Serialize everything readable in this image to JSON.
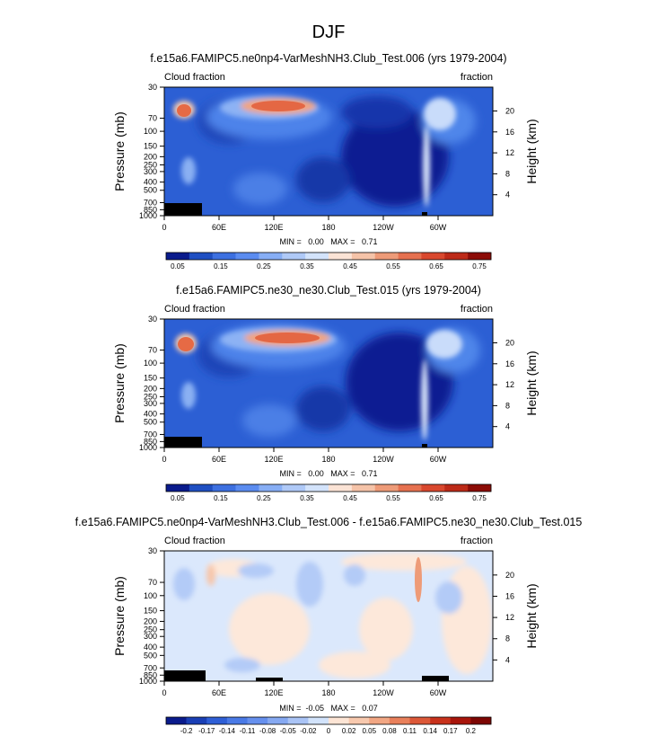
{
  "page_title": "DJF",
  "chart_data": [
    {
      "type": "heatmap",
      "title": "f.e15a6.FAMIPC5.ne0np4-VarMeshNH3.Club_Test.006 (yrs 1979-2004)",
      "left_label": "Cloud fraction",
      "right_label": "fraction",
      "ylabel": "Pressure (mb)",
      "ylabel_right": "Height (km)",
      "x_ticks": [
        "0",
        "60E",
        "120E",
        "180",
        "120W",
        "60W"
      ],
      "y_ticks": [
        "30",
        "70",
        "100",
        "150",
        "200",
        "250",
        "300",
        "400",
        "500",
        "700",
        "850",
        "1000"
      ],
      "height_ticks": [
        "20",
        "16",
        "12",
        "8",
        "4"
      ],
      "stats": "MIN =   0.00   MAX =   0.71",
      "colorbar_labels": [
        "0.05",
        "0.15",
        "0.25",
        "0.35",
        "0.45",
        "0.55",
        "0.65",
        "0.75"
      ],
      "colorbar_colors": [
        "#0a1b8c",
        "#1f4fc2",
        "#3d70e0",
        "#5b8cf0",
        "#87aef5",
        "#afc9f7",
        "#d3e3fb",
        "#fbe3d5",
        "#f5c3a8",
        "#ee9b78",
        "#e67150",
        "#d9482e",
        "#bd2a18",
        "#8c0c07"
      ],
      "min": 0.0,
      "max": 0.71
    },
    {
      "type": "heatmap",
      "title": "f.e15a6.FAMIPC5.ne30_ne30.Club_Test.015 (yrs 1979-2004)",
      "left_label": "Cloud fraction",
      "right_label": "fraction",
      "ylabel": "Pressure (mb)",
      "ylabel_right": "Height (km)",
      "x_ticks": [
        "0",
        "60E",
        "120E",
        "180",
        "120W",
        "60W"
      ],
      "y_ticks": [
        "30",
        "70",
        "100",
        "150",
        "200",
        "250",
        "300",
        "400",
        "500",
        "700",
        "850",
        "1000"
      ],
      "height_ticks": [
        "20",
        "16",
        "12",
        "8",
        "4"
      ],
      "stats": "MIN =   0.00   MAX =   0.71",
      "colorbar_labels": [
        "0.05",
        "0.15",
        "0.25",
        "0.35",
        "0.45",
        "0.55",
        "0.65",
        "0.75"
      ],
      "colorbar_colors": [
        "#0a1b8c",
        "#1f4fc2",
        "#3d70e0",
        "#5b8cf0",
        "#87aef5",
        "#afc9f7",
        "#d3e3fb",
        "#fbe3d5",
        "#f5c3a8",
        "#ee9b78",
        "#e67150",
        "#d9482e",
        "#bd2a18",
        "#8c0c07"
      ],
      "min": 0.0,
      "max": 0.71
    },
    {
      "type": "heatmap",
      "title": "f.e15a6.FAMIPC5.ne0np4-VarMeshNH3.Club_Test.006 - f.e15a6.FAMIPC5.ne30_ne30.Club_Test.015",
      "left_label": "Cloud fraction",
      "right_label": "fraction",
      "ylabel": "Pressure (mb)",
      "ylabel_right": "Height (km)",
      "x_ticks": [
        "0",
        "60E",
        "120E",
        "180",
        "120W",
        "60W"
      ],
      "y_ticks": [
        "30",
        "70",
        "100",
        "150",
        "200",
        "250",
        "300",
        "400",
        "500",
        "700",
        "850",
        "1000"
      ],
      "height_ticks": [
        "20",
        "16",
        "12",
        "8",
        "4"
      ],
      "stats": "MIN =  -0.05   MAX =   0.07",
      "colorbar_labels": [
        "-0.2",
        "-0.17",
        "-0.14",
        "-0.11",
        "-0.08",
        "-0.05",
        "-0.02",
        "0",
        "0.02",
        "0.05",
        "0.08",
        "0.11",
        "0.14",
        "0.17",
        "0.2"
      ],
      "colorbar_colors": [
        "#0a1b8c",
        "#1a3fb5",
        "#2f5fd6",
        "#4a7ae6",
        "#6690ee",
        "#86a9f2",
        "#aac4f6",
        "#d2e3fb",
        "#fde5d5",
        "#f8c9ae",
        "#f2a784",
        "#e9805b",
        "#dc5838",
        "#c8321c",
        "#a8150b",
        "#7d0603"
      ],
      "min": -0.05,
      "max": 0.07
    }
  ]
}
